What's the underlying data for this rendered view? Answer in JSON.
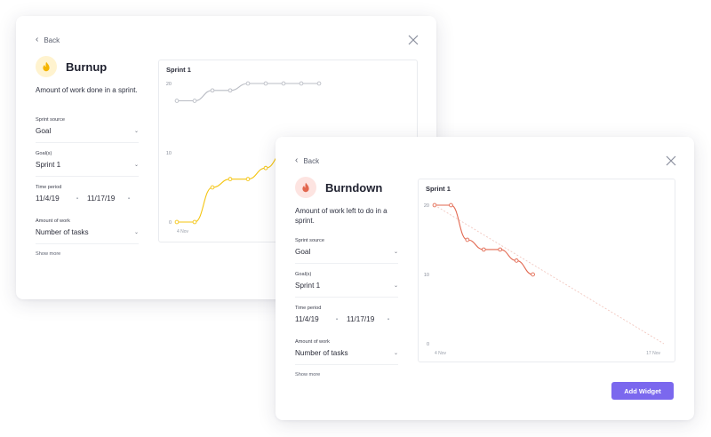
{
  "burnup": {
    "back_label": "Back",
    "title": "Burnup",
    "icon": "flame-icon",
    "accent_color": "#f4c40f",
    "description": "Amount of work done in a sprint.",
    "sprint_source_label": "Sprint source",
    "sprint_source_value": "Goal",
    "goals_label": "Goal(s)",
    "goals_value": "Sprint 1",
    "time_period_label": "Time period",
    "start_date": "11/4/19",
    "end_date": "11/17/19",
    "amount_label": "Amount of work",
    "amount_value": "Number of tasks",
    "show_more": "Show more",
    "chart_title": "Sprint 1"
  },
  "burndown": {
    "back_label": "Back",
    "title": "Burndown",
    "icon": "flame-icon",
    "accent_color": "#e2674f",
    "description": "Amount of work left to do in a sprint.",
    "sprint_source_label": "Sprint source",
    "sprint_source_value": "Goal",
    "goals_label": "Goal(s)",
    "goals_value": "Sprint 1",
    "time_period_label": "Time period",
    "start_date": "11/4/19",
    "end_date": "11/17/19",
    "amount_label": "Amount of work",
    "amount_value": "Number of tasks",
    "show_more": "Show more",
    "chart_title": "Sprint 1",
    "add_button": "Add Widget"
  },
  "chart_data": [
    {
      "type": "line",
      "title": "Sprint 1",
      "y_ticks": [
        "20",
        "10",
        "0"
      ],
      "x_tick_labels": [
        "4 Nov"
      ],
      "ylim": [
        0,
        20
      ],
      "series": [
        {
          "color": "#b9bcc4",
          "x": [
            0,
            1,
            2,
            3,
            4,
            5,
            6,
            7,
            8
          ],
          "values": [
            17.5,
            17.5,
            19,
            19,
            20,
            20,
            20,
            20,
            20
          ]
        },
        {
          "color": "#f4c40f",
          "x": [
            0,
            1,
            2,
            3,
            4,
            5,
            6,
            7,
            8
          ],
          "values": [
            0,
            0,
            5,
            6.2,
            6.2,
            7.8,
            10,
            10,
            10
          ]
        }
      ]
    },
    {
      "type": "line",
      "title": "Sprint 1",
      "y_ticks": [
        "20",
        "10",
        "0"
      ],
      "x_tick_labels": [
        "4 Nov",
        "17 Nov"
      ],
      "ylim": [
        0,
        20
      ],
      "series": [
        {
          "color": "#e2674f",
          "x": [
            0,
            1,
            2,
            3,
            4,
            5,
            6
          ],
          "values": [
            20,
            20,
            15,
            13.6,
            13.6,
            12,
            10
          ]
        },
        {
          "color": "#f2c8c0",
          "dashed": true,
          "x": [
            0,
            14
          ],
          "values": [
            20,
            0
          ]
        }
      ]
    }
  ]
}
